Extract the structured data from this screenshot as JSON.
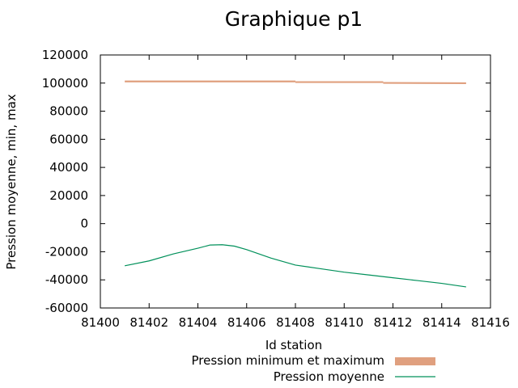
{
  "chart_data": {
    "type": "line",
    "title": "Graphique p1",
    "xlabel": "Id station",
    "ylabel": "Pression moyenne, min, max",
    "xlim": [
      81400,
      81416
    ],
    "ylim": [
      -60000,
      120000
    ],
    "x_ticks": [
      "81400",
      "81402",
      "81404",
      "81406",
      "81408",
      "81410",
      "81412",
      "81414",
      "81416"
    ],
    "y_ticks": [
      "-60000",
      "-40000",
      "-20000",
      "0",
      "20000",
      "40000",
      "60000",
      "80000",
      "100000",
      "120000"
    ],
    "grid": false,
    "legend_position": "bottom-right",
    "series": [
      {
        "name": "Pression minimum et maximum",
        "kind": "band",
        "color": "#e0a07f",
        "x": [
          81401,
          81408,
          81408,
          81411.6,
          81411.6,
          81415
        ],
        "low": [
          100500,
          100500,
          100100,
          100100,
          99500,
          99300
        ],
        "high": [
          101800,
          101800,
          101300,
          101300,
          100700,
          100500
        ]
      },
      {
        "name": "Pression moyenne",
        "kind": "line",
        "color": "#00905a",
        "x": [
          81401,
          81402,
          81403,
          81404,
          81404.5,
          81405,
          81405.5,
          81406,
          81407,
          81408,
          81409,
          81410,
          81411,
          81412,
          81413,
          81414,
          81415
        ],
        "y": [
          -30000,
          -26500,
          -21500,
          -17500,
          -15200,
          -15000,
          -16000,
          -18500,
          -24500,
          -29500,
          -32000,
          -34500,
          -36500,
          -38500,
          -40500,
          -42500,
          -45000
        ]
      }
    ]
  }
}
